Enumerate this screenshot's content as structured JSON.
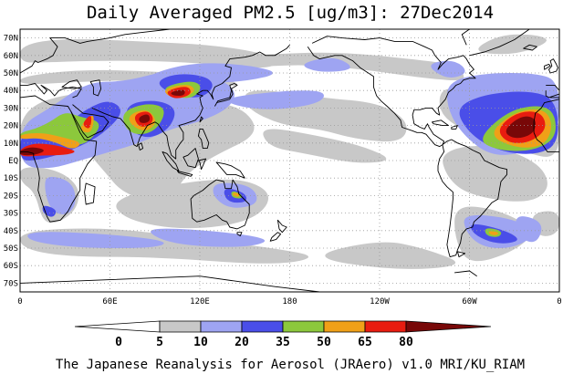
{
  "title": "Daily Averaged PM2.5 [ug/m3]: 27Dec2014",
  "credit": "The Japanese Reanalysis for Aerosol (JRAero) v1.0 MRI/KU_RIAM",
  "map": {
    "projection": "equirectangular",
    "lon_range": [
      0,
      360
    ],
    "lat_range": [
      -75,
      75
    ],
    "lat_ticks": [
      "70N",
      "60N",
      "50N",
      "40N",
      "30N",
      "20N",
      "10N",
      "EQ",
      "10S",
      "20S",
      "30S",
      "40S",
      "50S",
      "60S",
      "70S"
    ],
    "lon_ticks": [
      "0",
      "60E",
      "120E",
      "180",
      "120W",
      "60W",
      "0"
    ],
    "grid": "dotted"
  },
  "colorbar": {
    "ticks": [
      "0",
      "5",
      "10",
      "20",
      "35",
      "50",
      "65",
      "80"
    ],
    "colors": [
      "#ffffff",
      "#c8c8c8",
      "#9ea4f2",
      "#4a4ee8",
      "#8cc83c",
      "#f0a018",
      "#e81c10",
      "#780808"
    ],
    "extend": "both"
  },
  "colors": {
    "coast": "#000000",
    "grid": "#999999"
  }
}
